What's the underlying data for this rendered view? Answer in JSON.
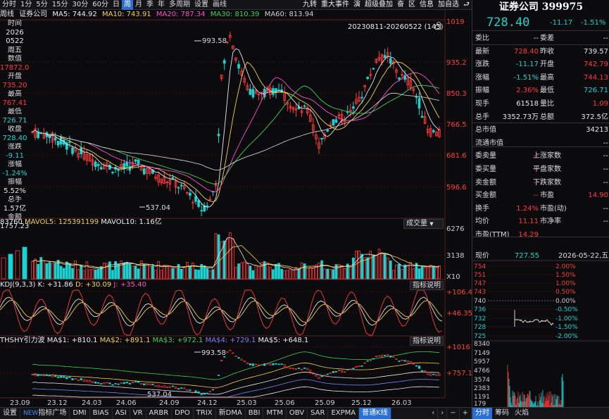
{
  "toolbar": {
    "items": [
      "分时",
      "1分",
      "5分",
      "15分",
      "30分",
      "60分",
      "日",
      "周",
      "月",
      "季",
      "年",
      "多周期",
      "设置",
      "画线"
    ],
    "active": "周",
    "right_items": [
      "九转",
      "重大事件",
      "演",
      "超级叠加",
      "奋",
      "区",
      "信息"
    ],
    "add_fav": "加自选"
  },
  "chart_info": {
    "period": "周线",
    "stock": "证券公司",
    "ma5": "MA5: 744.92",
    "ma10": "MA10: 743.91",
    "ma20": "MA20: 787.34",
    "ma30": "MA30: 810.39",
    "ma60": "MA60: 813.94"
  },
  "cursor_panel": [
    {
      "l": "时间",
      "v": "2026"
    },
    {
      "l": "",
      "v": "0522"
    },
    {
      "l": "",
      "v": "周五"
    },
    {
      "l": "数值",
      "v": "17872.00"
    },
    {
      "l": "开盘",
      "v": "735.20"
    },
    {
      "l": "最高",
      "v": "767.41"
    },
    {
      "l": "最低",
      "v": "726.71"
    },
    {
      "l": "收盘",
      "v": "728.40"
    },
    {
      "l": "涨跌",
      "v": "-9.11"
    },
    {
      "l": "涨幅",
      "v": "-1.24%"
    },
    {
      "l": "振幅",
      "v": "5.52%"
    },
    {
      "l": "总手",
      "v": "1.57亿"
    },
    {
      "l": "金额",
      "v": "1757.23亿"
    }
  ],
  "date_range": "20230811-20260522 (143)",
  "price_axis": [
    "1019",
    "935.2",
    "850.3",
    "766.5",
    "681.6",
    "596.6"
  ],
  "annotations": {
    "high": "993.58",
    "low": "537.04"
  },
  "volume": {
    "label_left": "83760",
    "mavol5": "MAVOL5: 125391199",
    "mavol10": "MAVOL10: 1.16亿",
    "button": "成交量",
    "axis": [
      "6276",
      "3138",
      "X10"
    ]
  },
  "kdj": {
    "name": "KDJ(9,3,3)",
    "k": "K: +31.86",
    "d": "D: +30.09",
    "j": "J: +35.40",
    "button": "指标说明",
    "axis": [
      "+106.4",
      "+46.35"
    ]
  },
  "thshy": {
    "name": "THSHY引力波",
    "ma1": "MA$1: +810.1",
    "ma2": "MA$2: +891.1",
    "ma3": "MA$3: +972.1",
    "ma4": "MA$4: +729.1",
    "ma5": "MA$5: +648.1",
    "button": "指标说明",
    "axis": [
      "+1016",
      "+757.1"
    ],
    "high": "993.58",
    "low": "537.04"
  },
  "x_axis": [
    "23.09",
    "23.12",
    "24.03",
    "24.06",
    "24.09",
    "24.12",
    "25.03",
    "25.06",
    "25.09",
    "25.12",
    "26.03"
  ],
  "bottom_tabs": [
    "设置",
    "NEW指标广场",
    "DMI",
    "BIAS",
    "ASI",
    "VR",
    "ARBR",
    "DPO",
    "TRIX",
    "新DMA",
    "BBI",
    "MTM",
    "OBV",
    "SAR",
    "EXPMA",
    "普通K线"
  ],
  "bottom_active": "普通K线",
  "quote": {
    "title": "证券公司 399975",
    "price": "728.40",
    "change": "-11.17",
    "pct": "-1.51%",
    "rows": [
      {
        "l": "委比",
        "v": "--",
        "l2": "委差",
        "v2": "--"
      },
      {
        "l": "最新",
        "v": "728.40",
        "l2": "昨收",
        "v2": "739.57"
      },
      {
        "l": "涨跌",
        "v": "-11.17",
        "l2": "开盘",
        "v2": "742.79"
      },
      {
        "l": "涨幅",
        "v": "-1.51%",
        "l2": "最高",
        "v2": "744.13"
      },
      {
        "l": "振幅",
        "v": "2.36%",
        "l2": "最低",
        "v2": "726.71"
      },
      {
        "l": "现手",
        "v": "61518",
        "l2": "量比",
        "v2": "1.09"
      },
      {
        "l": "总手",
        "v": "3352.73万",
        "l2": "总额",
        "v2": "372.5亿"
      },
      {
        "l": "总市值",
        "v": "",
        "l2": "",
        "v2": "34213"
      },
      {
        "l": "流通市值",
        "v": "",
        "l2": "",
        "v2": "--"
      },
      {
        "l": "委卖量",
        "v": "--",
        "l2": "上涨家数",
        "v2": "--"
      },
      {
        "l": "委买量",
        "v": "--",
        "l2": "平盘家数",
        "v2": "--"
      },
      {
        "l": "卖金额",
        "v": "--",
        "l2": "下跌家数",
        "v2": "--"
      },
      {
        "l": "买金额",
        "v": "--",
        "l2": "市盈",
        "v2": "14.90"
      },
      {
        "l": "换手",
        "v": "1.24%",
        "l2": "市盈(动)",
        "v2": "--"
      },
      {
        "l": "均价",
        "v": "11.11",
        "l2": "市净率",
        "v2": "--"
      },
      {
        "l": "市盈(TTM)",
        "v": "14.29",
        "l2": "",
        "v2": ""
      }
    ]
  },
  "mini": {
    "now_label": "现价",
    "now": "727.55",
    "date": "2026-05-22,五",
    "price_ticks": [
      "754",
      "751",
      "747",
      "743",
      "740",
      "736",
      "732",
      "728",
      "725"
    ],
    "pct_ticks": [
      "2.00%",
      "1.50%",
      "1.00%",
      "0.50%",
      "0.00%",
      "-0.50%",
      "-1.00%",
      "-1.50%",
      "-2.00%"
    ],
    "vol_ticks": [
      "8340",
      "7149",
      "5957",
      "4766",
      "3574",
      "2383",
      "1191",
      "179"
    ],
    "tabs": [
      "分时",
      "筹码",
      "火焰"
    ],
    "active": "分时"
  }
}
